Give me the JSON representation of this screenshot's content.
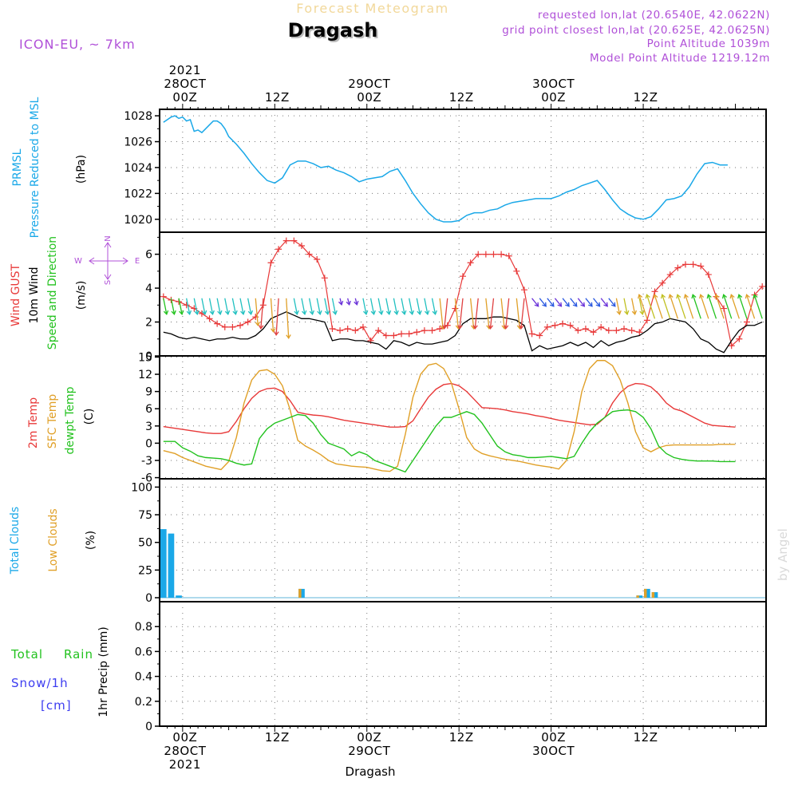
{
  "header": {
    "supertitle": "Forecast Meteogram",
    "location": "Dragash",
    "model": "ICON-EU, ~ 7km",
    "requested": "requested lon,lat (20.6540E, 42.0622N)",
    "grid_point": "grid point closest lon,lat (20.625E, 42.0625N)",
    "point_altitude": "Point Altitude 1039m",
    "model_altitude": "Model Point Altitude 1219.12m",
    "credit": "by Angel",
    "footer": "Dragash"
  },
  "colors": {
    "pressure": "#1aa8e8",
    "gust": "#e83838",
    "wind": "#000000",
    "green": "#22c21e",
    "orange": "#e0a028",
    "purple": "#b050d8",
    "cloud_total": "#1aa8e8",
    "cloud_low": "#e0a028",
    "rain": "#22c21e",
    "snow": "#3c3cf0"
  },
  "time_axis": {
    "top_labels": [
      {
        "hour": 0,
        "lines": [
          "2021",
          "28OCT",
          "00Z"
        ]
      },
      {
        "hour": 12,
        "lines": [
          "12Z"
        ]
      },
      {
        "hour": 24,
        "lines": [
          "29OCT",
          "00Z"
        ]
      },
      {
        "hour": 36,
        "lines": [
          "12Z"
        ]
      },
      {
        "hour": 48,
        "lines": [
          "30OCT",
          "00Z"
        ]
      },
      {
        "hour": 60,
        "lines": [
          "12Z"
        ]
      }
    ],
    "bottom_labels": [
      {
        "hour": 0,
        "lines": [
          "00Z",
          "28OCT",
          "2021"
        ]
      },
      {
        "hour": 12,
        "lines": [
          "12Z"
        ]
      },
      {
        "hour": 24,
        "lines": [
          "00Z",
          "29OCT"
        ]
      },
      {
        "hour": 36,
        "lines": [
          "12Z"
        ]
      },
      {
        "hour": 48,
        "lines": [
          "00Z",
          "30OCT"
        ]
      },
      {
        "hour": 60,
        "lines": [
          "12Z"
        ]
      }
    ]
  },
  "panels": {
    "pressure": {
      "labels": [
        "PRMSL",
        "Pressure Reduced to MSL"
      ],
      "unit": "(hPa)",
      "ticks": [
        "1028",
        "1026",
        "1024",
        "1022",
        "1020"
      ]
    },
    "wind": {
      "labels": [
        "Wind GUST",
        "10m Wind",
        "Speed and Direction"
      ],
      "unit": "(m/s)",
      "ticks": [
        "6",
        "4",
        "2",
        "0"
      ],
      "compass": {
        "n": "N",
        "s": "S",
        "w": "W",
        "e": "E"
      }
    },
    "temp": {
      "labels": [
        "2m Temp",
        "SFC Temp",
        "dewpt Temp"
      ],
      "unit": "(C)",
      "ticks": [
        "15",
        "12",
        "9",
        "6",
        "3",
        "0",
        "-3",
        "-6"
      ]
    },
    "cloud": {
      "labels": [
        "Total Clouds",
        "Low Clouds"
      ],
      "unit": "(%)",
      "ticks": [
        "100",
        "75",
        "50",
        "25",
        "0"
      ]
    },
    "precip": {
      "labels": [
        "Total",
        "Rain",
        "Snow/1h",
        "[cm]"
      ],
      "unit": "1hr Precip (mm)",
      "ticks": [
        "0.8",
        "0.6",
        "0.4",
        "0.2",
        "0"
      ]
    }
  },
  "chart_data": [
    {
      "type": "line",
      "title": "PRMSL Pressure Reduced to MSL",
      "ylabel": "hPa",
      "ylim": [
        1019,
        1028.5
      ],
      "x_hours": [
        -2.5,
        -2,
        -1.5,
        -1,
        -0.5,
        0,
        0.5,
        1,
        1.5,
        2,
        2.5,
        3,
        3.5,
        4,
        4.5,
        5,
        5.5,
        6,
        7,
        8,
        9,
        10,
        11,
        12,
        13,
        14,
        15,
        16,
        17,
        18,
        19,
        20,
        21,
        22,
        23,
        24,
        25,
        26,
        27,
        28,
        29,
        30,
        31,
        32,
        33,
        34,
        35,
        36,
        37,
        38,
        39,
        40,
        41,
        42,
        43,
        44,
        45,
        46,
        47,
        48,
        49,
        50,
        51,
        52,
        53,
        54,
        55,
        56,
        57,
        58,
        59,
        60,
        61,
        62,
        63,
        64,
        65,
        66,
        67,
        68,
        69,
        70,
        71,
        72,
        73,
        74,
        75
      ],
      "series": [
        {
          "values": [
            1027.5,
            1027.7,
            1027.9,
            1028.0,
            1027.8,
            1027.9,
            1027.6,
            1027.7,
            1026.8,
            1026.9,
            1026.7,
            1027.0,
            1027.3,
            1027.6,
            1027.6,
            1027.4,
            1027.0,
            1026.4,
            1025.8,
            1025.1,
            1024.3,
            1023.6,
            1023.0,
            1022.8,
            1023.2,
            1024.2,
            1024.5,
            1024.5,
            1024.3,
            1024.0,
            1024.1,
            1023.8,
            1023.6,
            1023.3,
            1022.9,
            1023.1,
            1023.2,
            1023.3,
            1023.7,
            1023.9,
            1023.0,
            1022.0,
            1021.2,
            1020.5,
            1020.0,
            1019.8,
            1019.8,
            1019.9,
            1020.3,
            1020.5,
            1020.5,
            1020.7,
            1020.8,
            1021.1,
            1021.3,
            1021.4,
            1021.5,
            1021.6,
            1021.6,
            1021.6,
            1021.8,
            1022.1,
            1022.3,
            1022.6,
            1022.8,
            1023.0,
            1022.3,
            1021.5,
            1020.8,
            1020.4,
            1020.1,
            1020.0,
            1020.2,
            1020.8,
            1021.5,
            1021.6,
            1021.8,
            1022.5,
            1023.5,
            1024.3,
            1024.4,
            1024.2,
            1024.2
          ]
        }
      ]
    },
    {
      "type": "line",
      "title": "Wind GUST / 10m Wind Speed and Direction",
      "ylabel": "m/s",
      "ylim": [
        0,
        7.3
      ],
      "x_hours": [
        -2.5,
        -1.5,
        -0.5,
        0.5,
        1.5,
        2.5,
        3.5,
        4.5,
        5.5,
        6.5,
        7.5,
        8.5,
        9.5,
        10.5,
        11.5,
        12.5,
        13.5,
        14.5,
        15.5,
        16.5,
        17.5,
        18.5,
        19.5,
        20.5,
        21.5,
        22.5,
        23.5,
        24.5,
        25.5,
        26.5,
        27.5,
        28.5,
        29.5,
        30.5,
        31.5,
        32.5,
        33.5,
        34.5,
        35.5,
        36.5,
        37.5,
        38.5,
        39.5,
        40.5,
        41.5,
        42.5,
        43.5,
        44.5,
        45.5,
        46.5,
        47.5,
        48.5,
        49.5,
        50.5,
        51.5,
        52.5,
        53.5,
        54.5,
        55.5,
        56.5,
        57.5,
        58.5,
        59.5,
        60.5,
        61.5,
        62.5,
        63.5,
        64.5,
        65.5,
        66.5,
        67.5,
        68.5,
        69.5,
        70.5,
        71.5,
        72.5,
        73.5,
        74.5,
        75.5
      ],
      "series": [
        {
          "name": "Wind GUST",
          "values": [
            3.5,
            3.3,
            3.2,
            3.0,
            2.8,
            2.5,
            2.2,
            1.9,
            1.7,
            1.7,
            1.8,
            2.0,
            2.3,
            3.0,
            5.5,
            6.3,
            6.8,
            6.8,
            6.5,
            6.0,
            5.7,
            4.6,
            1.6,
            1.5,
            1.6,
            1.5,
            1.7,
            0.9,
            1.5,
            1.2,
            1.2,
            1.3,
            1.3,
            1.4,
            1.5,
            1.5,
            1.6,
            1.8,
            2.8,
            4.7,
            5.5,
            6.0,
            6.0,
            6.0,
            6.0,
            5.9,
            5.0,
            3.9,
            1.3,
            1.2,
            1.7,
            1.8,
            1.9,
            1.8,
            1.5,
            1.6,
            1.4,
            1.7,
            1.5,
            1.5,
            1.6,
            1.5,
            1.4,
            2.1,
            3.8,
            4.3,
            4.8,
            5.2,
            5.4,
            5.4,
            5.3,
            4.8,
            3.5,
            2.8,
            0.6,
            1.0,
            2.0,
            3.6,
            4.1
          ]
        },
        {
          "name": "10m Wind",
          "values": [
            1.4,
            1.3,
            1.1,
            1.0,
            1.1,
            1.0,
            0.9,
            1.0,
            1.0,
            1.1,
            1.0,
            1.0,
            1.2,
            1.6,
            2.2,
            2.4,
            2.6,
            2.4,
            2.2,
            2.2,
            2.1,
            2.0,
            0.9,
            1.0,
            1.0,
            0.9,
            0.9,
            0.8,
            0.7,
            0.4,
            0.9,
            0.8,
            0.6,
            0.8,
            0.7,
            0.7,
            0.8,
            0.9,
            1.2,
            1.9,
            2.2,
            2.2,
            2.2,
            2.3,
            2.3,
            2.2,
            2.1,
            1.8,
            0.3,
            0.6,
            0.4,
            0.5,
            0.6,
            0.8,
            0.6,
            0.8,
            0.5,
            0.9,
            0.6,
            0.8,
            0.9,
            1.1,
            1.2,
            1.5,
            1.9,
            2.0,
            2.2,
            2.1,
            2.0,
            1.6,
            1.0,
            0.8,
            0.4,
            0.2,
            0.9,
            1.5,
            1.8,
            1.8,
            2.0
          ]
        }
      ]
    },
    {
      "type": "line",
      "title": "2m Temp / SFC Temp / dewpt Temp",
      "ylabel": "C",
      "ylim": [
        -6.2,
        15.2
      ],
      "x_hours": [
        -2.5,
        -1,
        0,
        1,
        2,
        3,
        4,
        5,
        6,
        7,
        8,
        9,
        10,
        11,
        12,
        13,
        14,
        15,
        16,
        17,
        18,
        19,
        20,
        21,
        22,
        23,
        24,
        25,
        26,
        27,
        28,
        29,
        30,
        31,
        32,
        33,
        34,
        35,
        36,
        37,
        38,
        39,
        40,
        41,
        42,
        43,
        44,
        45,
        46,
        47,
        48,
        49,
        50,
        51,
        52,
        53,
        54,
        55,
        56,
        57,
        58,
        59,
        60,
        61,
        62,
        63,
        64,
        65,
        66,
        67,
        68,
        69,
        70,
        71,
        72,
        73,
        74,
        75
      ],
      "series": [
        {
          "name": "2m Temp",
          "values": [
            2.9,
            2.6,
            2.4,
            2.2,
            2.0,
            1.8,
            1.7,
            1.7,
            2.0,
            3.8,
            6.0,
            7.8,
            9.0,
            9.5,
            9.6,
            9.0,
            7.4,
            5.4,
            5.1,
            4.9,
            4.8,
            4.6,
            4.3,
            4.0,
            3.8,
            3.6,
            3.4,
            3.2,
            3.0,
            2.8,
            2.8,
            2.9,
            3.9,
            6.0,
            8.0,
            9.4,
            10.2,
            10.4,
            10.0,
            9.0,
            7.6,
            6.2,
            6.1,
            6.0,
            5.8,
            5.5,
            5.3,
            5.1,
            4.8,
            4.6,
            4.3,
            4.0,
            3.8,
            3.6,
            3.4,
            3.2,
            3.3,
            4.5,
            7.0,
            8.8,
            9.9,
            10.4,
            10.3,
            9.8,
            8.6,
            7.0,
            6.0,
            5.6,
            4.9,
            4.2,
            3.5,
            3.1,
            3.0,
            2.9,
            2.8
          ]
        },
        {
          "name": "SFC Temp",
          "values": [
            -1.3,
            -1.8,
            -2.5,
            -3.0,
            -3.5,
            -4.0,
            -4.3,
            -4.6,
            -3.2,
            1.0,
            7.0,
            11.0,
            12.6,
            12.8,
            12.0,
            10.0,
            5.8,
            0.5,
            -0.5,
            -1.2,
            -2.0,
            -3.0,
            -3.6,
            -3.8,
            -4.0,
            -4.1,
            -4.2,
            -4.5,
            -4.8,
            -4.9,
            -4.0,
            1.5,
            8.0,
            12.0,
            13.6,
            13.9,
            13.0,
            10.5,
            6.0,
            1.0,
            -1.0,
            -1.8,
            -2.2,
            -2.5,
            -2.8,
            -3.0,
            -3.2,
            -3.5,
            -3.8,
            -4.0,
            -4.2,
            -4.5,
            -3.0,
            2.0,
            9.0,
            13.0,
            14.4,
            14.4,
            13.5,
            11.0,
            7.0,
            2.0,
            -0.8,
            -1.5,
            -0.8,
            -0.4,
            -0.3,
            -0.3,
            -0.3,
            -0.3,
            -0.3,
            -0.3,
            -0.2,
            -0.2,
            -0.2
          ]
        },
        {
          "name": "dewpt Temp",
          "values": [
            0.3,
            0.3,
            -0.8,
            -1.4,
            -2.2,
            -2.5,
            -2.6,
            -2.7,
            -3.0,
            -3.5,
            -3.8,
            -3.6,
            0.8,
            2.5,
            3.5,
            4.0,
            4.5,
            5.0,
            4.8,
            3.5,
            1.5,
            0.0,
            -0.5,
            -1.0,
            -2.2,
            -1.5,
            -2.0,
            -3.0,
            -3.5,
            -4.0,
            -4.5,
            -5.0,
            -3.0,
            -1.0,
            1.0,
            3.0,
            4.5,
            4.5,
            5.0,
            5.5,
            5.0,
            3.5,
            1.5,
            -0.5,
            -1.5,
            -2.0,
            -2.2,
            -2.5,
            -2.5,
            -2.4,
            -2.3,
            -2.5,
            -2.7,
            -2.3,
            0.0,
            2.0,
            3.5,
            4.5,
            5.5,
            5.7,
            5.8,
            5.5,
            4.5,
            2.5,
            -0.5,
            -1.8,
            -2.5,
            -2.8,
            -3.0,
            -3.1,
            -3.1,
            -3.1,
            -3.2,
            -3.2,
            -3.2
          ]
        }
      ]
    },
    {
      "type": "bar",
      "title": "Total Clouds / Low Clouds",
      "ylabel": "%",
      "ylim": [
        -3.6,
        107.5
      ],
      "x_hours": [
        -2.5,
        -1.5,
        -0.5,
        0.5,
        1.5,
        2.5,
        3.5,
        4.5,
        5.5,
        6.5,
        7.5,
        8.5,
        9.5,
        10.5,
        11.5,
        12.5,
        13.5,
        14.5,
        15.5,
        16.5,
        17.5,
        18.5,
        19.5,
        20.5,
        21.5,
        22.5,
        23.5,
        24.5,
        25.5,
        26.5,
        27.5,
        28.5,
        29.5,
        30.5,
        31.5,
        32.5,
        33.5,
        34.5,
        35.5,
        36.5,
        37.5,
        38.5,
        39.5,
        40.5,
        41.5,
        42.5,
        43.5,
        44.5,
        45.5,
        46.5,
        47.5,
        48.5,
        49.5,
        50.5,
        51.5,
        52.5,
        53.5,
        54.5,
        55.5,
        56.5,
        57.5,
        58.5,
        59.5,
        60.5,
        61.5,
        62.5,
        63.5,
        64.5,
        65.5,
        66.5,
        67.5,
        68.5,
        69.5,
        70.5,
        71.5,
        72.5,
        73.5,
        74.5,
        75.5
      ],
      "series": [
        {
          "name": "Total Clouds",
          "values": [
            62,
            58,
            2,
            0,
            0,
            0,
            0,
            0,
            0,
            0,
            0,
            0,
            0,
            0,
            0,
            0,
            0,
            0,
            8,
            0,
            0,
            0,
            0,
            0,
            0,
            0,
            0,
            0,
            0,
            0,
            0,
            0,
            0,
            0,
            0,
            0,
            0,
            0,
            0,
            0,
            0,
            0,
            0,
            0,
            0,
            0,
            0,
            0,
            0,
            0,
            0,
            0,
            0,
            0,
            0,
            0,
            0,
            0,
            0,
            0,
            0,
            0,
            2,
            8,
            5,
            0,
            0,
            0,
            0,
            0,
            0,
            0,
            0,
            0,
            0,
            0,
            0,
            0,
            0
          ]
        },
        {
          "name": "Low Clouds",
          "values": [
            0,
            0,
            0,
            0,
            0,
            0,
            0,
            0,
            0,
            0,
            0,
            0,
            0,
            0,
            0,
            0,
            0,
            0,
            8,
            0,
            0,
            0,
            0,
            0,
            0,
            0,
            0,
            0,
            0,
            0,
            0,
            0,
            0,
            0,
            0,
            0,
            0,
            0,
            0,
            0,
            0,
            0,
            0,
            0,
            0,
            0,
            0,
            0,
            0,
            0,
            0,
            0,
            0,
            0,
            0,
            0,
            0,
            0,
            0,
            0,
            0,
            0,
            2,
            8,
            5,
            0,
            0,
            0,
            0,
            0,
            0,
            0,
            0,
            0,
            0,
            0,
            0,
            0,
            0
          ]
        }
      ]
    },
    {
      "type": "bar",
      "title": "1hr Precip",
      "ylabel": "mm",
      "ylim": [
        0,
        1.0
      ],
      "series": [
        {
          "name": "Total Rain",
          "values": [
            0
          ]
        },
        {
          "name": "Snow/1h [cm]",
          "values": [
            0
          ]
        }
      ]
    }
  ]
}
